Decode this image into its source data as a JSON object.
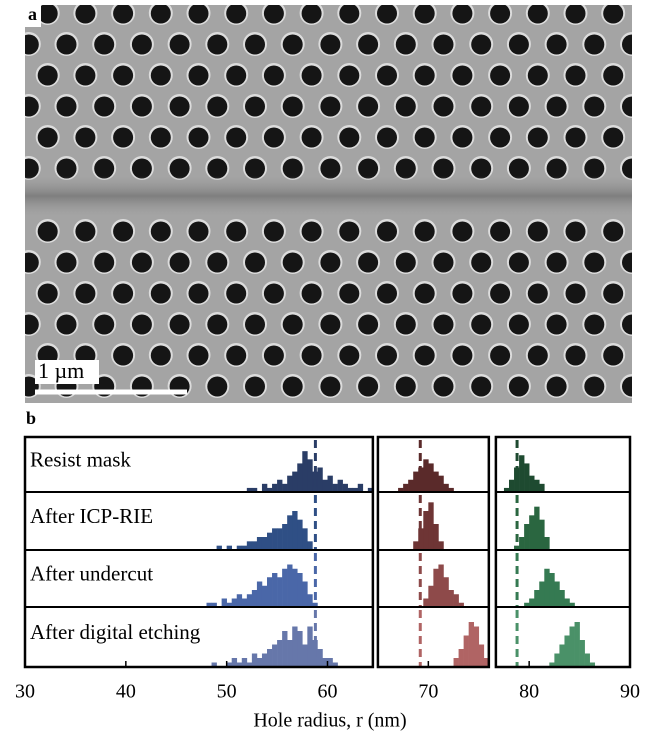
{
  "panel_a": {
    "label": "a",
    "scale_bar": "1 µm"
  },
  "chart_data": {
    "type": "histogram",
    "label": "b",
    "xlabel": "Hole radius, r (nm)",
    "xlim": [
      30,
      90
    ],
    "xticks": [
      30,
      40,
      50,
      60,
      70,
      80,
      90
    ],
    "panels": [
      [
        30,
        64.5
      ],
      [
        65,
        76
      ],
      [
        76.7,
        90
      ]
    ],
    "ylim": [
      0,
      12
    ],
    "reference_lines": [
      58.8,
      69.2,
      78.8
    ],
    "rows": [
      {
        "label": "Resist mask",
        "series": [
          {
            "color": "#2a3d66",
            "bins": [
              52,
              52.5,
              53,
              53.5,
              54,
              54.5,
              55,
              55.5,
              56,
              56.5,
              57,
              57.5,
              58,
              58.5,
              59,
              59.5,
              60,
              60.5,
              61,
              61.5,
              62,
              62.5,
              63,
              63.5,
              64,
              64.5
            ],
            "counts": [
              1,
              1,
              0,
              2,
              1,
              2,
              3,
              2,
              4,
              5,
              7,
              10,
              8,
              5,
              6,
              3,
              4,
              2,
              3,
              2,
              1,
              1,
              2,
              0,
              1
            ]
          },
          {
            "color": "#5a2a2a",
            "bins": [
              67,
              67.5,
              68,
              68.5,
              69,
              69.5,
              70,
              70.5,
              71,
              71.5,
              72,
              72.5
            ],
            "counts": [
              1,
              2,
              3,
              5,
              6,
              8,
              7,
              5,
              4,
              2,
              1
            ]
          },
          {
            "color": "#1e4a30",
            "bins": [
              77.5,
              78,
              78.5,
              79,
              79.5,
              80,
              80.5,
              81,
              81.5
            ],
            "counts": [
              1,
              3,
              6,
              9,
              7,
              4,
              3,
              2
            ]
          }
        ]
      },
      {
        "label": "After ICP-RIE",
        "series": [
          {
            "color": "#2f4f85",
            "bins": [
              49,
              49.5,
              50,
              50.5,
              51,
              51.5,
              52,
              52.5,
              53,
              53.5,
              54,
              54.5,
              55,
              55.5,
              56,
              56.5,
              57,
              57.5,
              58,
              58.5
            ],
            "counts": [
              1,
              0,
              1,
              0,
              1,
              1,
              2,
              2,
              3,
              3,
              4,
              5,
              5,
              6,
              8,
              9,
              7,
              5,
              2
            ]
          },
          {
            "color": "#6e3535",
            "bins": [
              68.5,
              69,
              69.5,
              70,
              70.5,
              71,
              71.5
            ],
            "counts": [
              2,
              5,
              9,
              11,
              6,
              2
            ]
          },
          {
            "color": "#2a6640",
            "bins": [
              78.5,
              79,
              79.5,
              80,
              80.5,
              81,
              81.5,
              82
            ],
            "counts": [
              1,
              3,
              6,
              8,
              10,
              7,
              3
            ]
          }
        ]
      },
      {
        "label": "After undercut",
        "series": [
          {
            "color": "#4a67a8",
            "bins": [
              48,
              48.5,
              49,
              49.5,
              50,
              50.5,
              51,
              51.5,
              52,
              52.5,
              53,
              53.5,
              54,
              54.5,
              55,
              55.5,
              56,
              56.5,
              57,
              57.5,
              58,
              58.5,
              59
            ],
            "counts": [
              1,
              1,
              0,
              2,
              1,
              2,
              3,
              2,
              3,
              4,
              6,
              5,
              7,
              8,
              7,
              9,
              10,
              9,
              8,
              6,
              3,
              1
            ]
          },
          {
            "color": "#8e4a4a",
            "bins": [
              69.5,
              70,
              70.5,
              71,
              71.5,
              72,
              72.5,
              73,
              73.5
            ],
            "counts": [
              2,
              5,
              9,
              10,
              7,
              4,
              3,
              1
            ]
          },
          {
            "color": "#357a52",
            "bins": [
              79.5,
              80,
              80.5,
              81,
              81.5,
              82,
              82.5,
              83,
              83.5,
              84,
              84.5
            ],
            "counts": [
              1,
              2,
              4,
              6,
              9,
              8,
              6,
              4,
              2,
              1
            ]
          }
        ]
      },
      {
        "label": "After digital etching",
        "series": [
          {
            "color": "#6677aa",
            "bins": [
              48.5,
              49,
              49.5,
              50,
              50.5,
              51,
              51.5,
              52,
              52.5,
              53,
              53.5,
              54,
              54.5,
              55,
              55.5,
              56,
              56.5,
              57,
              57.5,
              58,
              58.5,
              59,
              59.5,
              60,
              60.5,
              61
            ],
            "counts": [
              1,
              0,
              0,
              1,
              2,
              1,
              2,
              1,
              3,
              2,
              3,
              4,
              5,
              6,
              8,
              6,
              9,
              8,
              5,
              9,
              6,
              4,
              2,
              2,
              1
            ]
          },
          {
            "color": "#b06464",
            "bins": [
              72.5,
              73,
              73.5,
              74,
              74.5,
              75,
              75.5,
              76
            ],
            "counts": [
              2,
              4,
              7,
              10,
              9,
              5,
              2
            ]
          },
          {
            "color": "#4a9168",
            "bins": [
              82,
              82.5,
              83,
              83.5,
              84,
              84.5,
              85,
              85.5,
              86,
              86.5
            ],
            "counts": [
              1,
              3,
              5,
              7,
              9,
              10,
              6,
              3,
              1
            ]
          }
        ]
      }
    ]
  }
}
